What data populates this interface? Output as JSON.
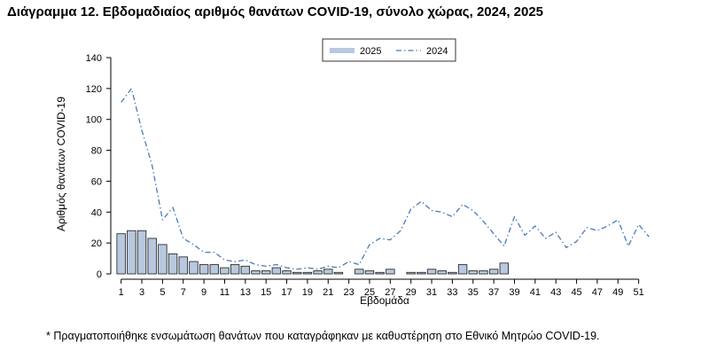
{
  "chart_data": {
    "type": "bar",
    "title": "Διάγραμμα 12. Εβδομαδιαίος αριθμός θανάτων COVID-19, σύνολο χώρας, 2024, 2025",
    "xlabel": "Εβδομάδα",
    "ylabel": "Αριθμός θανάτων COVID-19",
    "ylim": [
      0,
      140
    ],
    "yticks": [
      0,
      20,
      40,
      60,
      80,
      100,
      120,
      140
    ],
    "xlim": [
      0,
      53
    ],
    "xticks": [
      1,
      3,
      5,
      7,
      9,
      11,
      13,
      15,
      17,
      19,
      21,
      23,
      25,
      27,
      29,
      31,
      33,
      35,
      37,
      39,
      41,
      43,
      45,
      47,
      49,
      51
    ],
    "grid": false,
    "legend_position": "top-center",
    "series": [
      {
        "name": "2025",
        "kind": "bar",
        "color": "#b8c8de",
        "edge_color": "#1a1a1a",
        "x": [
          1,
          2,
          3,
          4,
          5,
          6,
          7,
          8,
          9,
          10,
          11,
          12,
          13,
          14,
          15,
          16,
          17,
          18,
          19,
          20,
          21,
          22,
          23,
          24,
          25,
          26,
          27,
          28,
          29,
          30,
          31,
          32,
          33,
          34,
          35,
          36,
          37,
          38
        ],
        "values": [
          26,
          28,
          28,
          23,
          19,
          13,
          11,
          8,
          6,
          6,
          4,
          6,
          5,
          2,
          2,
          4,
          2,
          1,
          1,
          2,
          3,
          1,
          0,
          3,
          2,
          1,
          3,
          0,
          1,
          1,
          3,
          2,
          1,
          6,
          2,
          2,
          3,
          7
        ]
      },
      {
        "name": "2024",
        "kind": "line",
        "style": "dash-dot",
        "color": "#4a7ab5",
        "x": [
          1,
          2,
          3,
          4,
          5,
          6,
          7,
          8,
          9,
          10,
          11,
          12,
          13,
          14,
          15,
          16,
          17,
          18,
          19,
          20,
          21,
          22,
          23,
          24,
          25,
          26,
          27,
          28,
          29,
          30,
          31,
          32,
          33,
          34,
          35,
          36,
          37,
          38,
          39,
          40,
          41,
          42,
          43,
          44,
          45,
          46,
          47,
          48,
          49,
          50,
          51,
          52
        ],
        "values": [
          111,
          120,
          93,
          70,
          35,
          43,
          23,
          19,
          14,
          14,
          9,
          8,
          9,
          6,
          5,
          6,
          4,
          3,
          4,
          3,
          5,
          4,
          8,
          6,
          19,
          23,
          22,
          28,
          42,
          47,
          41,
          40,
          37,
          45,
          41,
          34,
          26,
          18,
          37,
          25,
          31,
          23,
          27,
          17,
          21,
          30,
          28,
          31,
          35,
          18,
          32,
          24
        ]
      }
    ]
  },
  "footnote": "* Πραγματοποιήθηκε ενσωμάτωση θανάτων που καταγράφηκαν με καθυστέρηση στο Εθνικό Μητρώο COVID-19."
}
